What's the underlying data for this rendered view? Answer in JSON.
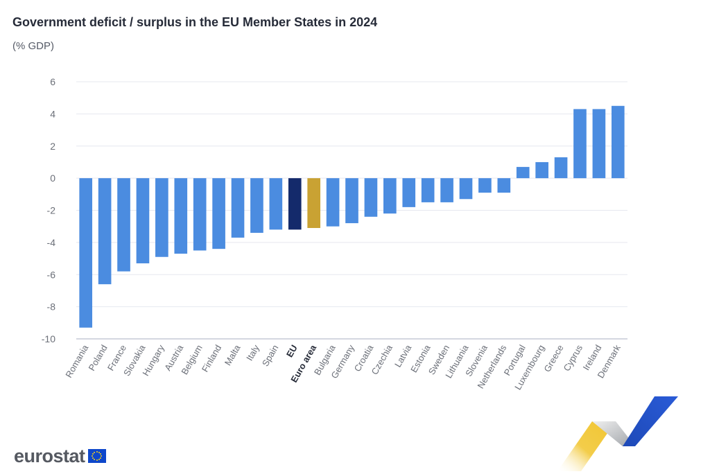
{
  "chart_data": {
    "type": "bar",
    "title": "Government deficit / surplus in the EU Member States in 2024",
    "subtitle": "(% GDP)",
    "xlabel": "",
    "ylabel": "",
    "ylim": [
      -10,
      6
    ],
    "yticks": [
      6,
      4,
      2,
      0,
      -2,
      -4,
      -6,
      -8,
      -10
    ],
    "grid": true,
    "categories": [
      "Romania",
      "Poland",
      "France",
      "Slovakia",
      "Hungary",
      "Austria",
      "Belgium",
      "Finland",
      "Malta",
      "Italy",
      "Spain",
      "EU",
      "Euro area",
      "Bulgaria",
      "Germany",
      "Croatia",
      "Czechia",
      "Latvia",
      "Estonia",
      "Sweden",
      "Lithuania",
      "Slovenia",
      "Netherlands",
      "Portugal",
      "Luxembourg",
      "Greece",
      "Cyprus",
      "Ireland",
      "Denmark"
    ],
    "values": [
      -9.3,
      -6.6,
      -5.8,
      -5.3,
      -4.9,
      -4.7,
      -4.5,
      -4.4,
      -3.7,
      -3.4,
      -3.2,
      -3.2,
      -3.1,
      -3.0,
      -2.8,
      -2.4,
      -2.2,
      -1.8,
      -1.5,
      -1.5,
      -1.3,
      -0.9,
      -0.9,
      0.7,
      1.0,
      1.3,
      4.3,
      4.3,
      4.5
    ],
    "highlight": {
      "EU": "#142a6b",
      "Euro area": "#c9a233"
    },
    "bold_categories": [
      "EU",
      "Euro area"
    ]
  },
  "colors": {
    "bar": "#4b8ce0",
    "eu": "#142a6b",
    "euro_area": "#c9a233",
    "grid": "#e6e8ef",
    "axis": "#c4c8d4",
    "tick_text": "#6b6f78",
    "title": "#262b38"
  },
  "branding": {
    "wordmark": "eurostat"
  }
}
